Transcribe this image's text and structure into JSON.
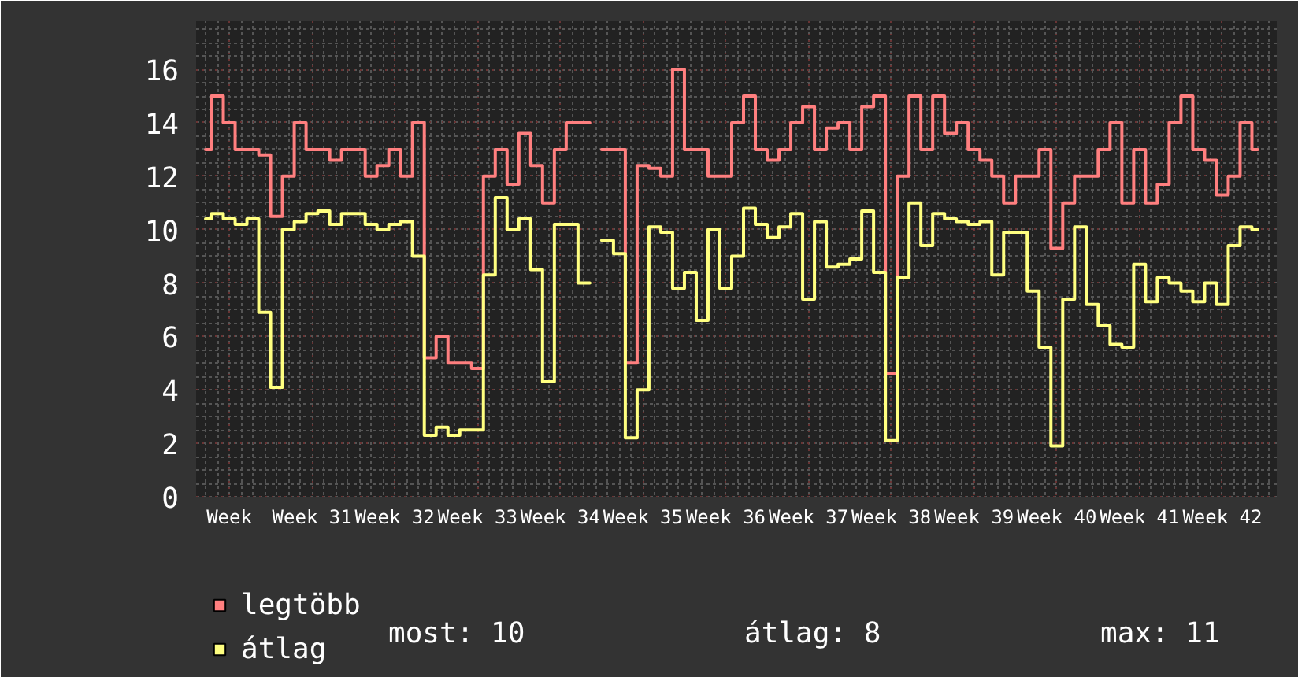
{
  "chart_data": {
    "type": "step",
    "annotations": [
      "most: 10",
      "átlag: 8",
      "max: 11"
    ],
    "categories": [
      null,
      null,
      "Week",
      null,
      null,
      null,
      null,
      null,
      null,
      "Week 31",
      null,
      null,
      null,
      null,
      null,
      null,
      "Week 32",
      null,
      null,
      null,
      null,
      null,
      null,
      "Week 33",
      null,
      null,
      null,
      null,
      null,
      null,
      "Week 34",
      null,
      null,
      null,
      null,
      null,
      null,
      "Week 35",
      null,
      null,
      null,
      null,
      null,
      null,
      "Week 36",
      null,
      null,
      null,
      null,
      null,
      null,
      "Week 37",
      null,
      null,
      null,
      null,
      null,
      null,
      "Week 38",
      null,
      null,
      null,
      null,
      null,
      null,
      "Week 39",
      null,
      null,
      null,
      null,
      null,
      null,
      "Week 40",
      null,
      null,
      null,
      null,
      null,
      null,
      "Week 41",
      null,
      null,
      null,
      null,
      null,
      null,
      "Week 42",
      null,
      null,
      null
    ],
    "ylim": [
      0,
      17.8
    ],
    "yticks": [
      0,
      2,
      4,
      6,
      8,
      10,
      12,
      14,
      16
    ],
    "grid": true,
    "legend": "bottom left",
    "line_style": "solid",
    "series": [
      {
        "name": "legtöbb",
        "color": "#ff7f7f",
        "values": [
          13,
          15,
          14,
          13,
          13,
          12.8,
          10.5,
          12,
          14,
          13,
          13,
          12.6,
          13,
          13,
          12,
          12.4,
          13,
          12,
          14,
          5.2,
          6,
          5,
          5,
          4.8,
          12,
          13,
          11.7,
          13.6,
          12.4,
          11,
          13,
          14,
          14,
          null,
          13,
          13,
          5,
          12.4,
          12.3,
          12,
          16,
          13,
          13,
          12,
          12,
          14,
          15,
          13,
          12.6,
          13,
          14,
          14.6,
          13,
          13.8,
          14,
          13,
          14.6,
          15,
          4.6,
          12,
          15,
          13,
          15,
          13.6,
          14,
          13,
          12.6,
          12,
          11,
          12,
          12,
          13,
          9.3,
          11,
          12,
          12,
          13,
          14,
          11,
          13,
          11,
          11.7,
          14,
          15,
          13,
          12.6,
          11.3,
          12,
          14,
          13
        ]
      },
      {
        "name": "átlag",
        "color": "#ffff80",
        "values": [
          10.4,
          10.6,
          10.4,
          10.2,
          10.4,
          6.9,
          4.1,
          10,
          10.3,
          10.6,
          10.7,
          10.2,
          10.6,
          10.6,
          10.2,
          10,
          10.2,
          10.3,
          9,
          2.3,
          2.6,
          2.3,
          2.5,
          2.5,
          8.3,
          11.2,
          10,
          10.4,
          8.5,
          4.3,
          10.2,
          10.2,
          8,
          null,
          9.6,
          9.1,
          2.2,
          4,
          10.1,
          9.9,
          7.8,
          8.4,
          6.6,
          10,
          7.8,
          9,
          10.8,
          10.2,
          9.7,
          10.1,
          10.6,
          7.4,
          10.3,
          8.6,
          8.7,
          8.9,
          10.7,
          8.4,
          2.1,
          8.2,
          11,
          9.4,
          10.6,
          10.4,
          10.3,
          10.2,
          10.3,
          8.3,
          9.9,
          9.9,
          7.7,
          5.6,
          1.9,
          7.4,
          10.1,
          7.2,
          6.4,
          5.7,
          5.6,
          8.7,
          7.3,
          8.2,
          8,
          7.7,
          7.3,
          8,
          7.2,
          9.4,
          10.1,
          10
        ]
      }
    ]
  }
}
